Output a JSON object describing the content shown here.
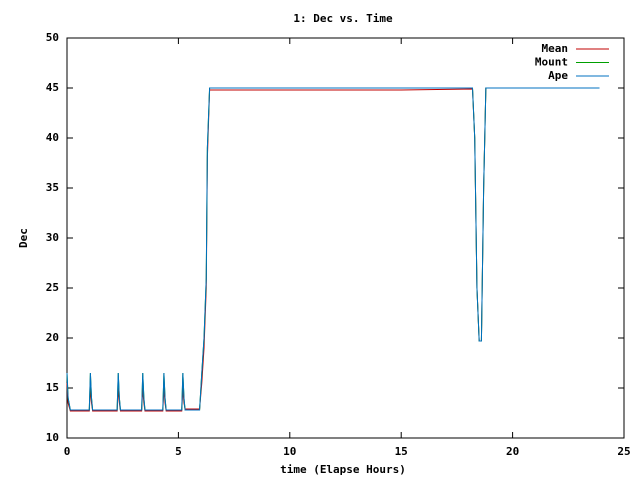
{
  "chart_data": {
    "type": "line",
    "title": "1: Dec vs. Time",
    "x_label": "time (Elapse Hours)",
    "y_label": "Dec",
    "x": [
      0,
      0.05,
      0.15,
      1.0,
      1.05,
      1.1,
      1.15,
      2.25,
      2.3,
      2.35,
      2.4,
      3.35,
      3.4,
      3.45,
      3.5,
      4.3,
      4.35,
      4.4,
      4.45,
      5.15,
      5.2,
      5.25,
      5.3,
      5.95,
      6.05,
      6.15,
      6.25,
      6.3,
      6.4,
      15.0,
      18.2,
      18.3,
      18.4,
      18.5,
      18.6,
      18.7,
      18.8,
      23.9
    ],
    "series": [
      {
        "name": "Mean",
        "color": "#c00000",
        "values": [
          15.5,
          13.5,
          12.7,
          12.7,
          15,
          13.5,
          12.7,
          12.7,
          15,
          13.5,
          12.7,
          12.7,
          15,
          13.5,
          12.7,
          12.7,
          15,
          13.5,
          12.7,
          12.7,
          15,
          13.5,
          12.9,
          12.9,
          15.5,
          19,
          25,
          38,
          44.8,
          44.8,
          44.9,
          40,
          25,
          19.7,
          19.7,
          35,
          45,
          45
        ]
      },
      {
        "name": "Mount",
        "color": "#00a000",
        "values": [
          16.5,
          14,
          12.8,
          12.8,
          16.5,
          14,
          12.8,
          12.8,
          16.5,
          14,
          12.8,
          12.8,
          16.5,
          14,
          12.8,
          12.8,
          16.5,
          14,
          12.8,
          12.8,
          16.5,
          14,
          12.8,
          12.8,
          16.5,
          20,
          26,
          39,
          45,
          45,
          45,
          40,
          25,
          19.7,
          19.7,
          35,
          45,
          45
        ]
      },
      {
        "name": "Ape",
        "color": "#0070c0",
        "values": [
          16.5,
          14,
          12.8,
          12.8,
          16.5,
          14,
          12.8,
          12.8,
          16.5,
          14,
          12.8,
          12.8,
          16.5,
          14,
          12.8,
          12.8,
          16.5,
          14,
          12.8,
          12.8,
          16.5,
          14,
          12.8,
          12.8,
          16.5,
          20,
          26,
          39,
          45,
          45,
          45,
          40,
          25,
          19.7,
          19.7,
          35,
          45,
          45
        ]
      }
    ],
    "xlim": [
      0,
      25
    ],
    "xticks": [
      0,
      5,
      10,
      15,
      20,
      25
    ],
    "ylim": [
      10,
      50
    ],
    "yticks": [
      10,
      15,
      20,
      25,
      30,
      35,
      40,
      45,
      50
    ],
    "grid": false,
    "legend": "top-right"
  }
}
